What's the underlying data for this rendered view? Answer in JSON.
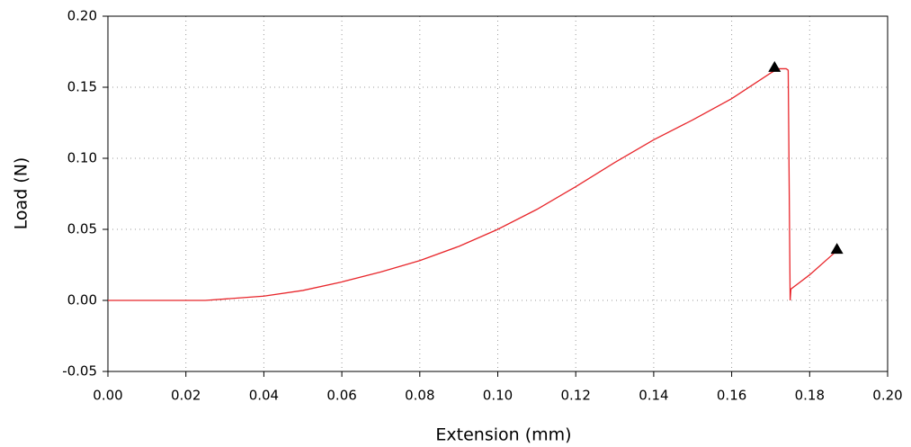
{
  "chart_data": {
    "type": "line",
    "xlabel": "Extension (mm)",
    "ylabel": "Load (N)",
    "xlim": [
      0,
      0.2
    ],
    "ylim": [
      -0.05,
      0.2
    ],
    "xticks": [
      {
        "value": 0,
        "label": "0.00"
      },
      {
        "value": 0.02,
        "label": "0.02"
      },
      {
        "value": 0.04,
        "label": "0.04"
      },
      {
        "value": 0.06,
        "label": "0.06"
      },
      {
        "value": 0.08,
        "label": "0.08"
      },
      {
        "value": 0.1,
        "label": "0.10"
      },
      {
        "value": 0.12,
        "label": "0.12"
      },
      {
        "value": 0.14,
        "label": "0.14"
      },
      {
        "value": 0.16,
        "label": "0.16"
      },
      {
        "value": 0.18,
        "label": "0.18"
      },
      {
        "value": 0.2,
        "label": "0.20"
      }
    ],
    "yticks": [
      {
        "value": -0.05,
        "label": "-0.05"
      },
      {
        "value": 0,
        "label": "0.00"
      },
      {
        "value": 0.05,
        "label": "0.05"
      },
      {
        "value": 0.1,
        "label": "0.10"
      },
      {
        "value": 0.15,
        "label": "0.15"
      },
      {
        "value": 0.2,
        "label": "0.20"
      }
    ],
    "grid": true,
    "series": [
      {
        "color": "#e8262b",
        "x": [
          0,
          0.01,
          0.02,
          0.025,
          0.03,
          0.04,
          0.05,
          0.06,
          0.07,
          0.08,
          0.09,
          0.1,
          0.11,
          0.12,
          0.13,
          0.14,
          0.15,
          0.16,
          0.17,
          0.172,
          0.174,
          0.1745,
          0.175,
          0.1752,
          0.18,
          0.187
        ],
        "values": [
          0,
          0,
          0,
          0,
          0.001,
          0.003,
          0.007,
          0.013,
          0.02,
          0.028,
          0.038,
          0.05,
          0.064,
          0.08,
          0.097,
          0.113,
          0.127,
          0.142,
          0.16,
          0.163,
          0.163,
          0.162,
          0,
          0.008,
          0.018,
          0.035
        ]
      },
      {
        "color": "#000000",
        "marker": "triangle",
        "x": [
          0.171,
          0.187
        ],
        "values": [
          0.164,
          0.036
        ]
      }
    ]
  }
}
